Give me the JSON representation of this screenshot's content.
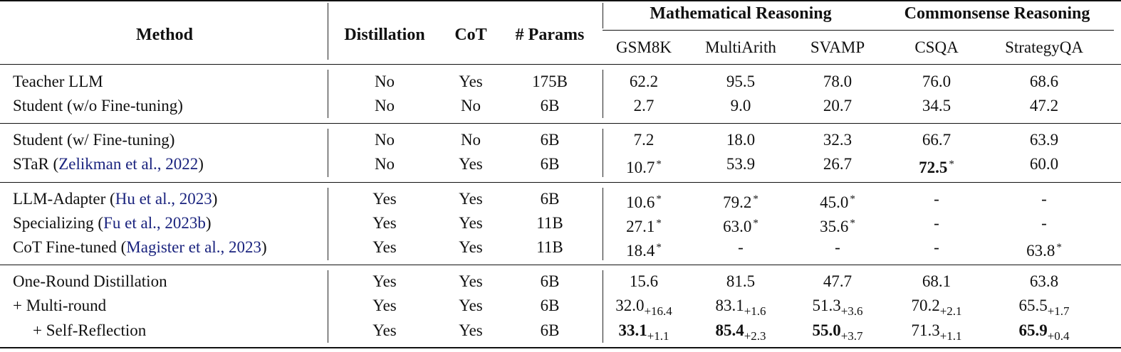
{
  "table": {
    "headers": {
      "method": "Method",
      "distillation": "Distillation",
      "cot": "CoT",
      "params": "# Params",
      "group_math": "Mathematical Reasoning",
      "group_common": "Commonsense Reasoning",
      "datasets": [
        "GSM8K",
        "MultiArith",
        "SVAMP",
        "CSQA",
        "StrategyQA"
      ]
    },
    "rows": [
      {
        "method": "Teacher LLM",
        "cite": "",
        "close": "",
        "distillation": "No",
        "cot": "Yes",
        "params": "175B",
        "scores": [
          {
            "v": "62.2"
          },
          {
            "v": "95.5"
          },
          {
            "v": "78.0"
          },
          {
            "v": "76.0"
          },
          {
            "v": "68.6"
          }
        ]
      },
      {
        "method": "Student (w/o Fine-tuning)",
        "cite": "",
        "close": "",
        "distillation": "No",
        "cot": "No",
        "params": "6B",
        "scores": [
          {
            "v": "2.7"
          },
          {
            "v": "9.0"
          },
          {
            "v": "20.7"
          },
          {
            "v": "34.5"
          },
          {
            "v": "47.2"
          }
        ]
      },
      {
        "method": "Student (w/ Fine-tuning)",
        "cite": "",
        "close": "",
        "distillation": "No",
        "cot": "No",
        "params": "6B",
        "scores": [
          {
            "v": "7.2"
          },
          {
            "v": "18.0"
          },
          {
            "v": "32.3"
          },
          {
            "v": "66.7"
          },
          {
            "v": "63.9"
          }
        ]
      },
      {
        "method": "STaR (",
        "cite": "Zelikman et al., 2022",
        "close": ")",
        "distillation": "No",
        "cot": "Yes",
        "params": "6B",
        "scores": [
          {
            "v": "10.7",
            "sup": "*"
          },
          {
            "v": "53.9"
          },
          {
            "v": "26.7"
          },
          {
            "v": "72.5",
            "bold": true,
            "sup": "*"
          },
          {
            "v": "60.0"
          }
        ]
      },
      {
        "method": "LLM-Adapter (",
        "cite": "Hu et al., 2023",
        "close": ")",
        "distillation": "Yes",
        "cot": "Yes",
        "params": "6B",
        "scores": [
          {
            "v": "10.6",
            "sup": "*"
          },
          {
            "v": "79.2",
            "sup": "*"
          },
          {
            "v": "45.0",
            "sup": "*"
          },
          {
            "v": "-"
          },
          {
            "v": "-"
          }
        ]
      },
      {
        "method": "Specializing (",
        "cite": "Fu et al., 2023b",
        "close": ")",
        "distillation": "Yes",
        "cot": "Yes",
        "params": "11B",
        "scores": [
          {
            "v": "27.1",
            "sup": "*"
          },
          {
            "v": "63.0",
            "sup": "*"
          },
          {
            "v": "35.6",
            "sup": "*"
          },
          {
            "v": "-"
          },
          {
            "v": "-"
          }
        ]
      },
      {
        "method": "CoT Fine-tuned (",
        "cite": "Magister et al., 2023",
        "close": ")",
        "distillation": "Yes",
        "cot": "Yes",
        "params": "11B",
        "scores": [
          {
            "v": "18.4",
            "sup": "*"
          },
          {
            "v": "-"
          },
          {
            "v": "-"
          },
          {
            "v": "-"
          },
          {
            "v": "63.8",
            "sup": "*"
          }
        ]
      },
      {
        "method": "One-Round Distillation",
        "cite": "",
        "close": "",
        "distillation": "Yes",
        "cot": "Yes",
        "params": "6B",
        "scores": [
          {
            "v": "15.6"
          },
          {
            "v": "81.5"
          },
          {
            "v": "47.7"
          },
          {
            "v": "68.1"
          },
          {
            "v": "63.8"
          }
        ]
      },
      {
        "method": "+ Multi-round",
        "cite": "",
        "close": "",
        "distillation": "Yes",
        "cot": "Yes",
        "params": "6B",
        "scores": [
          {
            "v": "32.0",
            "sub": "+16.4"
          },
          {
            "v": "83.1",
            "sub": "+1.6"
          },
          {
            "v": "51.3",
            "sub": "+3.6"
          },
          {
            "v": "70.2",
            "sub": "+2.1"
          },
          {
            "v": "65.5",
            "sub": "+1.7"
          }
        ]
      },
      {
        "method": "+ Self-Reflection",
        "cite": "",
        "close": "",
        "distillation": "Yes",
        "cot": "Yes",
        "params": "6B",
        "indent": true,
        "scores": [
          {
            "v": "33.1",
            "bold": true,
            "sub": "+1.1"
          },
          {
            "v": "85.4",
            "bold": true,
            "sub": "+2.3"
          },
          {
            "v": "55.0",
            "bold": true,
            "sub": "+3.7"
          },
          {
            "v": "71.3",
            "sub": "+1.1"
          },
          {
            "v": "65.9",
            "bold": true,
            "sub": "+0.4"
          }
        ]
      }
    ]
  }
}
